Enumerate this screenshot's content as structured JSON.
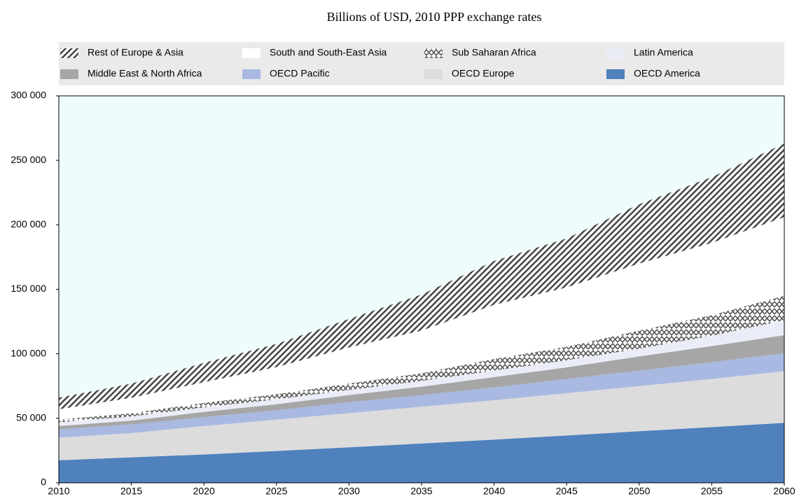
{
  "chart_data": {
    "type": "stacked_area",
    "title": "Billions of USD, 2010 PPP exchange rates",
    "x": [
      2010,
      2015,
      2020,
      2025,
      2030,
      2035,
      2040,
      2045,
      2050,
      2055,
      2060
    ],
    "series": [
      {
        "name": "OECD America",
        "color": "#4f81bd",
        "values": [
          17500,
          19700,
          22000,
          24700,
          27500,
          30500,
          33500,
          36700,
          40000,
          43200,
          46500
        ]
      },
      {
        "name": "OECD Europe",
        "color": "#dcdcdc",
        "values": [
          17500,
          18800,
          22000,
          24300,
          26500,
          28500,
          30500,
          32800,
          35000,
          37300,
          40000
        ]
      },
      {
        "name": "OECD Pacific",
        "color": "#a9b9e2",
        "values": [
          6500,
          6700,
          7000,
          7200,
          8500,
          9000,
          10000,
          11000,
          12000,
          13000,
          14000
        ]
      },
      {
        "name": "Middle East & North Africa",
        "color": "#a6a6a6",
        "values": [
          2500,
          3000,
          4000,
          4700,
          5500,
          6500,
          8000,
          9000,
          11000,
          12500,
          14000
        ]
      },
      {
        "name": "Latin America",
        "color": "#eaedf7",
        "values": [
          3000,
          3200,
          3500,
          3800,
          4000,
          4500,
          5000,
          5500,
          6000,
          8000,
          11500
        ]
      },
      {
        "name": "Sub Saharan Africa",
        "color": "#555555",
        "pattern": "zigzag",
        "values": [
          2000,
          2500,
          3500,
          4000,
          5000,
          6000,
          9000,
          10500,
          14000,
          16000,
          19000
        ]
      },
      {
        "name": "South and South-East Asia",
        "color": "#ffffff",
        "values": [
          8000,
          12000,
          16000,
          21000,
          28000,
          33000,
          42000,
          46000,
          52000,
          56000,
          61000
        ]
      },
      {
        "name": "Rest of Europe & Asia",
        "color": "#444444",
        "pattern": "diagonal",
        "values": [
          9000,
          11000,
          15000,
          18000,
          22000,
          28000,
          34000,
          38000,
          46000,
          51000,
          57000
        ]
      }
    ],
    "xlim": [
      2010,
      2060
    ],
    "ylim": [
      0,
      300000
    ],
    "xticks": [
      2010,
      2015,
      2020,
      2025,
      2030,
      2035,
      2040,
      2045,
      2050,
      2055,
      2060
    ],
    "yticks": [
      0,
      {
        "value": 50000,
        "label": "50 000"
      },
      {
        "value": 100000,
        "label": "100 000"
      },
      {
        "value": 150000,
        "label": "150 000"
      },
      {
        "value": 200000,
        "label": "200 000"
      },
      {
        "value": 250000,
        "label": "250 000"
      },
      {
        "value": 300000,
        "label": "300 000"
      }
    ],
    "plot_background": "#effcfc",
    "legend": "top"
  }
}
